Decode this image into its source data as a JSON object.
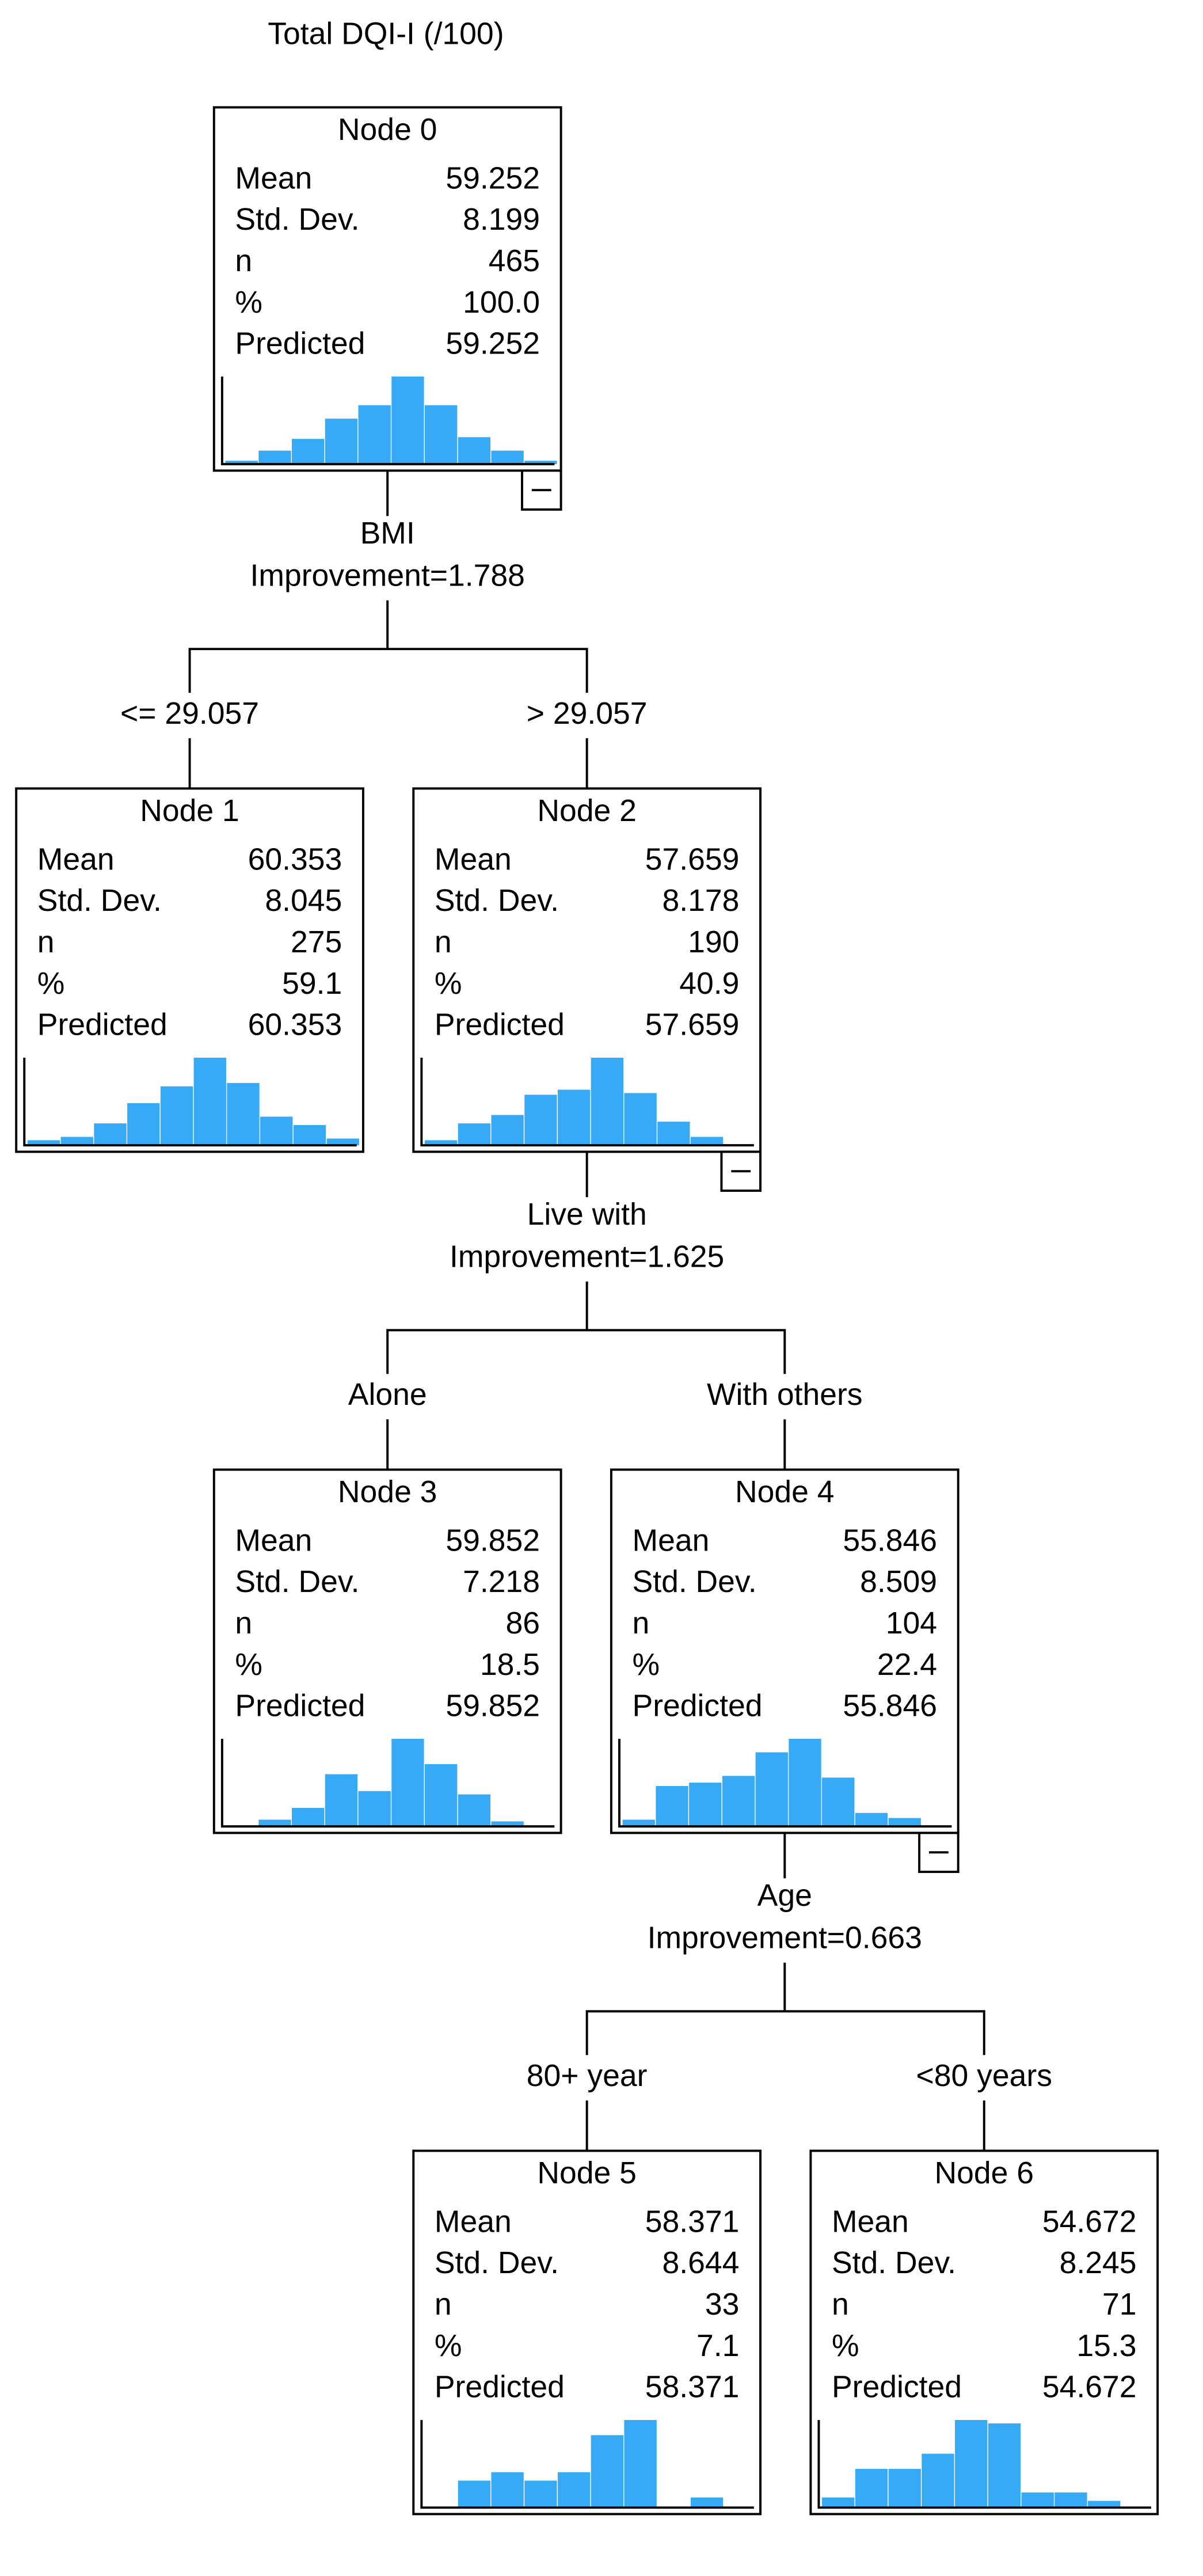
{
  "title": "Total DQI-I (/100)",
  "nodes": [
    {
      "label": "Node 0",
      "stats": [
        [
          "Mean",
          "59.252"
        ],
        [
          "Std. Dev.",
          "8.199"
        ],
        [
          "n",
          "465"
        ],
        [
          "%",
          "100.0"
        ],
        [
          "Predicted",
          "59.252"
        ]
      ],
      "histogram": [
        2,
        8,
        15,
        27,
        35,
        52,
        35,
        16,
        8,
        2
      ]
    },
    {
      "label": "Node 1",
      "stats": [
        [
          "Mean",
          "60.353"
        ],
        [
          "Std. Dev.",
          "8.045"
        ],
        [
          "n",
          "275"
        ],
        [
          "%",
          "59.1"
        ],
        [
          "Predicted",
          "60.353"
        ]
      ],
      "histogram": [
        3,
        5,
        13,
        25,
        35,
        52,
        37,
        17,
        12,
        4
      ]
    },
    {
      "label": "Node 2",
      "stats": [
        [
          "Mean",
          "57.659"
        ],
        [
          "Std. Dev.",
          "8.178"
        ],
        [
          "n",
          "190"
        ],
        [
          "%",
          "40.9"
        ],
        [
          "Predicted",
          "57.659"
        ]
      ],
      "histogram": [
        3,
        13,
        18,
        30,
        33,
        52,
        31,
        14,
        5,
        0
      ]
    },
    {
      "label": "Node 3",
      "stats": [
        [
          "Mean",
          "59.852"
        ],
        [
          "Std. Dev.",
          "7.218"
        ],
        [
          "n",
          "86"
        ],
        [
          "%",
          "18.5"
        ],
        [
          "Predicted",
          "59.852"
        ]
      ],
      "histogram": [
        0,
        4,
        11,
        31,
        21,
        52,
        37,
        19,
        3,
        0
      ]
    },
    {
      "label": "Node 4",
      "stats": [
        [
          "Mean",
          "55.846"
        ],
        [
          "Std. Dev.",
          "8.509"
        ],
        [
          "n",
          "104"
        ],
        [
          "%",
          "22.4"
        ],
        [
          "Predicted",
          "55.846"
        ]
      ],
      "histogram": [
        4,
        24,
        26,
        30,
        44,
        52,
        29,
        8,
        5,
        0
      ]
    },
    {
      "label": "Node 5",
      "stats": [
        [
          "Mean",
          "58.371"
        ],
        [
          "Std. Dev.",
          "8.644"
        ],
        [
          "n",
          "33"
        ],
        [
          "%",
          "7.1"
        ],
        [
          "Predicted",
          "58.371"
        ]
      ],
      "histogram": [
        0,
        16,
        21,
        16,
        21,
        43,
        52,
        0,
        6,
        0
      ]
    },
    {
      "label": "Node 6",
      "stats": [
        [
          "Mean",
          "54.672"
        ],
        [
          "Std. Dev.",
          "8.245"
        ],
        [
          "n",
          "71"
        ],
        [
          "%",
          "15.3"
        ],
        [
          "Predicted",
          "54.672"
        ]
      ],
      "histogram": [
        6,
        23,
        23,
        32,
        52,
        50,
        9,
        9,
        4,
        0
      ]
    }
  ],
  "splits": [
    {
      "variable": "BMI",
      "improvement": "Improvement=1.788",
      "branches": [
        "<= 29.057",
        "> 29.057"
      ]
    },
    {
      "variable": "Live with",
      "improvement": "Improvement=1.625",
      "branches": [
        "Alone",
        "With others"
      ]
    },
    {
      "variable": "Age",
      "improvement": "Improvement=0.663",
      "branches": [
        "80+ year",
        "<80 years"
      ]
    }
  ]
}
